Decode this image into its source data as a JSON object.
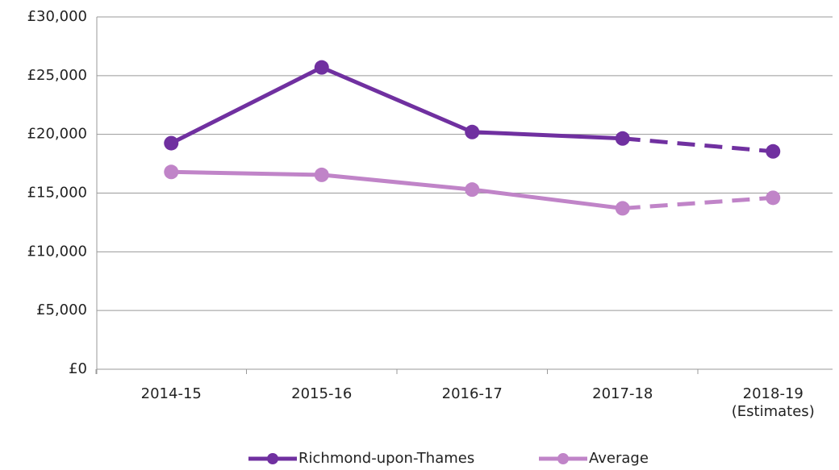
{
  "chart_data": {
    "type": "line",
    "categories": [
      "2014-15",
      "2015-16",
      "2016-17",
      "2017-18",
      "2018-19 (Estimates)"
    ],
    "series": [
      {
        "name": "Richmond-upon-Thames",
        "color": "#7030a0",
        "values": [
          19250,
          25700,
          20200,
          19650,
          18550
        ],
        "dashed_segments": [
          3
        ]
      },
      {
        "name": "Average",
        "color": "#c084c8",
        "values": [
          16800,
          16550,
          15300,
          13700,
          14600
        ],
        "dashed_segments": [
          3
        ]
      }
    ],
    "ylim": [
      0,
      30000
    ],
    "yticks": [
      {
        "value": 0,
        "label": "£0"
      },
      {
        "value": 5000,
        "label": "£5,000"
      },
      {
        "value": 10000,
        "label": "£10,000"
      },
      {
        "value": 15000,
        "label": "£15,000"
      },
      {
        "value": 20000,
        "label": "£20,000"
      },
      {
        "value": 25000,
        "label": "£25,000"
      },
      {
        "value": 30000,
        "label": "£30,000"
      }
    ],
    "grid": true,
    "legend": "bottom"
  }
}
